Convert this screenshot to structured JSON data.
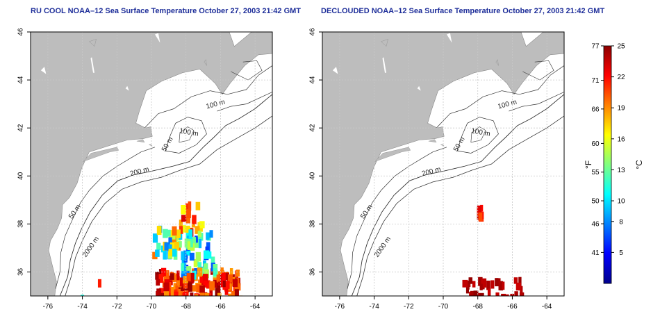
{
  "panels": [
    {
      "title": "RU COOL NOAA–12 Sea Surface Temperature October 27, 2003 21:42 GMT",
      "mode": "raw",
      "contour_labels": [
        "100 m",
        "100 m",
        "50 m",
        "200 m",
        "50 m",
        "2000 m"
      ]
    },
    {
      "title": "DECLOUDED NOAA–12 Sea Surface Temperature October 27, 2003 21:42 GMT",
      "mode": "declouded",
      "contour_labels": [
        "100 m",
        "100 m",
        "50 m",
        "200 m",
        "50 m",
        "2000 m"
      ]
    }
  ],
  "axes": {
    "lon_ticks": [
      "-76",
      "-74",
      "-72",
      "-70",
      "-68",
      "-66",
      "-64"
    ],
    "lat_ticks": [
      "36",
      "38",
      "40",
      "42",
      "44",
      "46"
    ],
    "lon_range": [
      -77,
      -63
    ],
    "lat_range": [
      35,
      46
    ]
  },
  "colorbar": {
    "f_label": "°F",
    "c_label": "°C",
    "f_ticks": [
      "77",
      "71",
      "66",
      "60",
      "55",
      "50",
      "46",
      "41"
    ],
    "c_ticks": [
      "25",
      "22",
      "19",
      "16",
      "13",
      "10",
      "8",
      "5"
    ],
    "c_range": [
      2,
      25
    ],
    "colors": [
      "#00008b",
      "#0000ff",
      "#0080ff",
      "#00ffff",
      "#80ff80",
      "#ffff00",
      "#ff8000",
      "#ff0000",
      "#8b0000"
    ]
  },
  "colors": {
    "land": "#bdbdbd",
    "ocean": "#ffffff",
    "title": "#1f2f9a"
  }
}
